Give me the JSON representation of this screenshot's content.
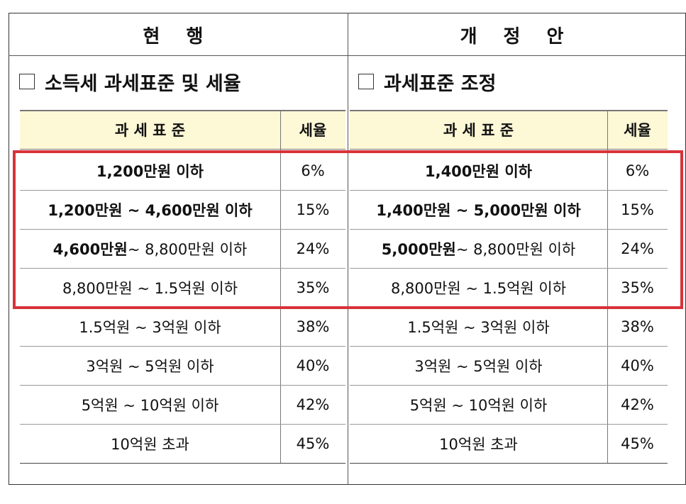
{
  "left": {
    "header": "현 행",
    "section": "소득세 과세표준 및 세율",
    "columns": [
      "과 세 표 준",
      "세율"
    ],
    "rows": [
      {
        "bold": "1,200만원 이하",
        "rate": "6%"
      },
      {
        "bold": "1,200만원 ~ 4,600만원 이하",
        "rate": "15%"
      },
      {
        "bold": "4,600만원",
        "text": "~ 8,800만원 이하",
        "rate": "24%"
      },
      {
        "text": "8,800만원 ~ 1.5억원 이하",
        "rate": "35%"
      },
      {
        "text": "1.5억원 ~ 3억원 이하",
        "rate": "38%"
      },
      {
        "text": "3억원 ~ 5억원 이하",
        "rate": "40%"
      },
      {
        "text": "5억원 ~ 10억원 이하",
        "rate": "42%"
      },
      {
        "text": "10억원 초과",
        "rate": "45%"
      }
    ]
  },
  "right": {
    "header": "개 정 안",
    "section": "과세표준 조정",
    "columns": [
      "과 세 표 준",
      "세율"
    ],
    "rows": [
      {
        "bold": "1,400만원 이하",
        "rate": "6%"
      },
      {
        "bold": "1,400만원 ~ 5,000만원 이하",
        "rate": "15%"
      },
      {
        "bold": "5,000만원",
        "text": "~ 8,800만원 이하",
        "rate": "24%"
      },
      {
        "text": "8,800만원 ~ 1.5억원 이하",
        "rate": "35%"
      },
      {
        "text": "1.5억원 ~ 3억원 이하",
        "rate": "38%"
      },
      {
        "text": "3억원 ~ 5억원 이하",
        "rate": "40%"
      },
      {
        "text": "5억원 ~ 10억원 이하",
        "rate": "42%"
      },
      {
        "text": "10억원 초과",
        "rate": "45%"
      }
    ]
  }
}
